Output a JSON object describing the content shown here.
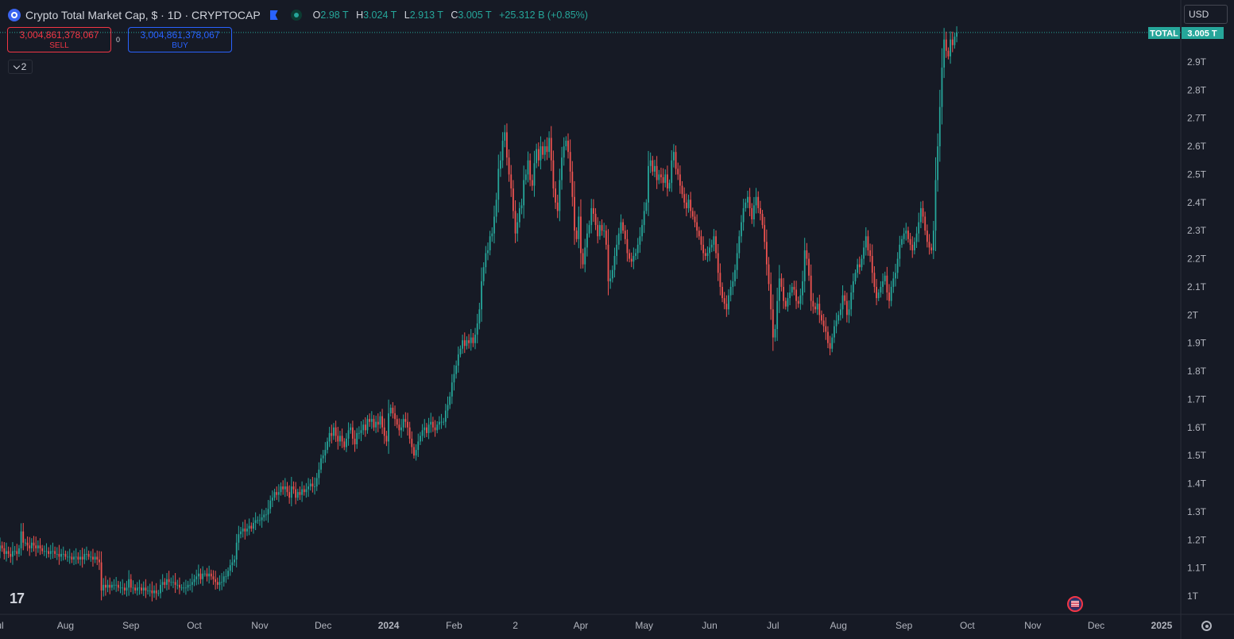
{
  "header": {
    "title": "Crypto Total Market Cap, $ · 1D · CRYPTOCAP",
    "ohlc": [
      {
        "k": "O",
        "v": "2.98 T"
      },
      {
        "k": "H",
        "v": "3.024 T"
      },
      {
        "k": "L",
        "v": "2.913 T"
      },
      {
        "k": "C",
        "v": "3.005 T"
      }
    ],
    "change": "+25.312 B (+0.85%)"
  },
  "trade": {
    "sell_value": "3,004,861,378,067",
    "sell_label": "SELL",
    "buy_value": "3,004,861,378,067",
    "buy_label": "BUY",
    "spread": "0"
  },
  "indicators_count": "2",
  "currency": "USD",
  "logo_text": "17",
  "colors": {
    "up": "#26a69a",
    "down": "#ef5350",
    "background": "#161a25"
  },
  "chart_data": {
    "type": "candlestick",
    "symbol": "TOTAL",
    "last_price_label": "3.005 T",
    "y_ticks": [
      "1T",
      "1.1T",
      "1.2T",
      "1.3T",
      "1.4T",
      "1.5T",
      "1.6T",
      "1.7T",
      "1.8T",
      "1.9T",
      "2T",
      "2.1T",
      "2.2T",
      "2.3T",
      "2.4T",
      "2.5T",
      "2.6T",
      "2.7T",
      "2.8T",
      "2.9T"
    ],
    "x_ticks": [
      {
        "label": "ul",
        "date": "2023-07-01"
      },
      {
        "label": "Aug",
        "date": "2023-08-01"
      },
      {
        "label": "Sep",
        "date": "2023-09-01"
      },
      {
        "label": "Oct",
        "date": "2023-10-01"
      },
      {
        "label": "Nov",
        "date": "2023-11-01"
      },
      {
        "label": "Dec",
        "date": "2023-12-01"
      },
      {
        "label": "2024",
        "date": "2024-01-01"
      },
      {
        "label": "Feb",
        "date": "2024-02-01"
      },
      {
        "label": "2",
        "date": "2024-03-01"
      },
      {
        "label": "Apr",
        "date": "2024-04-01"
      },
      {
        "label": "May",
        "date": "2024-05-01"
      },
      {
        "label": "Jun",
        "date": "2024-06-01"
      },
      {
        "label": "Jul",
        "date": "2024-07-01"
      },
      {
        "label": "Aug",
        "date": "2024-08-01"
      },
      {
        "label": "Sep",
        "date": "2024-09-01"
      },
      {
        "label": "Oct",
        "date": "2024-10-01"
      },
      {
        "label": "Nov",
        "date": "2024-11-01"
      },
      {
        "label": "Dec",
        "date": "2024-12-01"
      },
      {
        "label": "2025",
        "date": "2025-01-01"
      }
    ],
    "ylim": [
      1.0,
      2.9
    ],
    "last_close": 3.005,
    "start_date": "2023-06-29",
    "closes": [
      1.15,
      1.16,
      1.18,
      1.17,
      1.15,
      1.16,
      1.15,
      1.14,
      1.16,
      1.16,
      1.15,
      1.17,
      1.23,
      1.19,
      1.19,
      1.18,
      1.17,
      1.19,
      1.18,
      1.17,
      1.18,
      1.17,
      1.16,
      1.16,
      1.16,
      1.15,
      1.16,
      1.16,
      1.15,
      1.15,
      1.14,
      1.15,
      1.15,
      1.14,
      1.14,
      1.14,
      1.13,
      1.14,
      1.14,
      1.13,
      1.14,
      1.13,
      1.15,
      1.15,
      1.14,
      1.14,
      1.13,
      1.14,
      1.13,
      1.12,
      1.02,
      1.04,
      1.03,
      1.04,
      1.03,
      1.04,
      1.04,
      1.04,
      1.03,
      1.03,
      1.03,
      1.02,
      1.03,
      1.06,
      1.03,
      1.03,
      1.02,
      1.03,
      1.03,
      1.02,
      1.03,
      1.02,
      1.02,
      1.02,
      1.01,
      1.02,
      1.01,
      1.01,
      1.04,
      1.05,
      1.04,
      1.06,
      1.05,
      1.05,
      1.05,
      1.04,
      1.04,
      1.03,
      1.03,
      1.03,
      1.03,
      1.04,
      1.04,
      1.05,
      1.06,
      1.07,
      1.08,
      1.06,
      1.08,
      1.08,
      1.07,
      1.08,
      1.07,
      1.06,
      1.05,
      1.04,
      1.05,
      1.05,
      1.07,
      1.07,
      1.09,
      1.11,
      1.12,
      1.13,
      1.19,
      1.22,
      1.23,
      1.24,
      1.23,
      1.24,
      1.25,
      1.24,
      1.26,
      1.27,
      1.27,
      1.27,
      1.28,
      1.29,
      1.29,
      1.31,
      1.34,
      1.35,
      1.37,
      1.36,
      1.37,
      1.39,
      1.38,
      1.39,
      1.37,
      1.35,
      1.39,
      1.38,
      1.35,
      1.37,
      1.36,
      1.38,
      1.37,
      1.38,
      1.39,
      1.4,
      1.39,
      1.39,
      1.42,
      1.45,
      1.49,
      1.5,
      1.52,
      1.55,
      1.58,
      1.57,
      1.6,
      1.57,
      1.55,
      1.57,
      1.55,
      1.53,
      1.56,
      1.59,
      1.6,
      1.56,
      1.54,
      1.58,
      1.58,
      1.59,
      1.61,
      1.59,
      1.63,
      1.62,
      1.63,
      1.6,
      1.62,
      1.61,
      1.64,
      1.6,
      1.57,
      1.55,
      1.65,
      1.67,
      1.65,
      1.63,
      1.61,
      1.59,
      1.6,
      1.63,
      1.62,
      1.6,
      1.56,
      1.53,
      1.5,
      1.52,
      1.55,
      1.57,
      1.59,
      1.6,
      1.58,
      1.61,
      1.62,
      1.6,
      1.59,
      1.61,
      1.62,
      1.62,
      1.62,
      1.66,
      1.68,
      1.71,
      1.76,
      1.79,
      1.82,
      1.86,
      1.88,
      1.91,
      1.89,
      1.91,
      1.9,
      1.92,
      1.9,
      1.93,
      1.97,
      2.02,
      2.12,
      2.17,
      2.22,
      2.23,
      2.28,
      2.29,
      2.35,
      2.41,
      2.52,
      2.55,
      2.62,
      2.65,
      2.56,
      2.5,
      2.45,
      2.37,
      2.29,
      2.33,
      2.38,
      2.39,
      2.48,
      2.5,
      2.55,
      2.48,
      2.46,
      2.54,
      2.59,
      2.55,
      2.6,
      2.57,
      2.6,
      2.58,
      2.63,
      2.55,
      2.45,
      2.4,
      2.37,
      2.48,
      2.56,
      2.6,
      2.62,
      2.58,
      2.51,
      2.42,
      2.3,
      2.27,
      2.35,
      2.22,
      2.18,
      2.24,
      2.29,
      2.32,
      2.38,
      2.36,
      2.32,
      2.28,
      2.32,
      2.3,
      2.3,
      2.25,
      2.12,
      2.13,
      2.16,
      2.21,
      2.25,
      2.29,
      2.33,
      2.3,
      2.27,
      2.22,
      2.2,
      2.19,
      2.21,
      2.22,
      2.25,
      2.28,
      2.32,
      2.37,
      2.4,
      2.53,
      2.55,
      2.51,
      2.53,
      2.48,
      2.5,
      2.49,
      2.47,
      2.5,
      2.45,
      2.47,
      2.55,
      2.58,
      2.52,
      2.5,
      2.46,
      2.43,
      2.4,
      2.38,
      2.41,
      2.37,
      2.35,
      2.33,
      2.3,
      2.28,
      2.25,
      2.22,
      2.21,
      2.22,
      2.24,
      2.25,
      2.28,
      2.22,
      2.15,
      2.1,
      2.06,
      2.04,
      2.02,
      2.07,
      2.1,
      2.12,
      2.16,
      2.22,
      2.28,
      2.33,
      2.38,
      2.4,
      2.42,
      2.38,
      2.34,
      2.39,
      2.42,
      2.38,
      2.36,
      2.32,
      2.26,
      2.18,
      2.11,
      2.02,
      1.92,
      1.95,
      2.05,
      2.13,
      2.1,
      2.05,
      2.03,
      2.06,
      2.08,
      2.1,
      2.09,
      2.05,
      2.04,
      2.07,
      2.12,
      2.23,
      2.2,
      2.14,
      2.05,
      2.03,
      2.02,
      2.04,
      2.0,
      1.98,
      1.96,
      1.94,
      1.9,
      1.88,
      1.92,
      1.96,
      1.98,
      2.0,
      2.02,
      2.07,
      2.05,
      2.0,
      2.02,
      2.08,
      2.12,
      2.15,
      2.18,
      2.17,
      2.2,
      2.24,
      2.28,
      2.23,
      2.21,
      2.15,
      2.1,
      2.06,
      2.08,
      2.1,
      2.12,
      2.14,
      2.08,
      2.05,
      2.1,
      2.13,
      2.15,
      2.2,
      2.25,
      2.27,
      2.29,
      2.3,
      2.27,
      2.25,
      2.23,
      2.26,
      2.29,
      2.33,
      2.38,
      2.35,
      2.3,
      2.26,
      2.24,
      2.23,
      2.3,
      2.48,
      2.6,
      2.74,
      2.88,
      2.98,
      2.94,
      2.92,
      2.98,
      2.96,
      2.99,
      3.005
    ]
  }
}
